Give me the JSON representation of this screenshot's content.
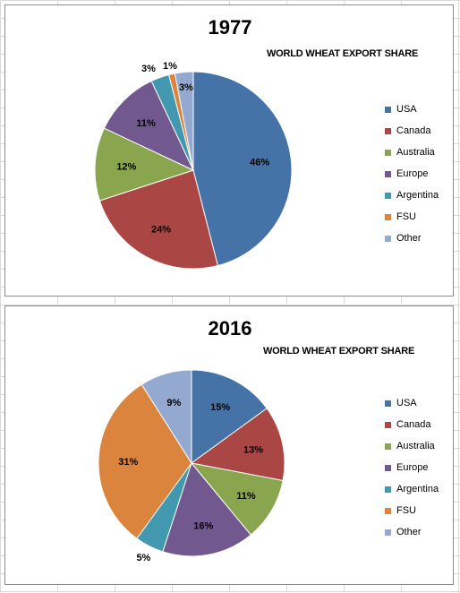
{
  "chart_data": [
    {
      "type": "pie",
      "title": "1977",
      "subtitle": "WORLD WHEAT EXPORT SHARE",
      "categories": [
        "USA",
        "Canada",
        "Australia",
        "Europe",
        "Argentina",
        "FSU",
        "Other"
      ],
      "values": [
        46,
        24,
        12,
        11,
        3,
        1,
        3
      ],
      "labels": [
        "46%",
        "24%",
        "12%",
        "11%",
        "3%",
        "1%",
        "3%"
      ],
      "colors": [
        "#4572A7",
        "#AA4643",
        "#89A54E",
        "#71588F",
        "#4198AF",
        "#DB843D",
        "#93A9CF"
      ],
      "legend_position": "right"
    },
    {
      "type": "pie",
      "title": "2016",
      "subtitle": "WORLD WHEAT EXPORT SHARE",
      "categories": [
        "USA",
        "Canada",
        "Australia",
        "Europe",
        "Argentina",
        "FSU",
        "Other"
      ],
      "values": [
        15,
        13,
        11,
        16,
        5,
        31,
        9
      ],
      "labels": [
        "15%",
        "13%",
        "11%",
        "16%",
        "5%",
        "31%",
        "9%"
      ],
      "colors": [
        "#4572A7",
        "#AA4643",
        "#89A54E",
        "#71588F",
        "#4198AF",
        "#DB843D",
        "#93A9CF"
      ],
      "legend_position": "right"
    }
  ]
}
